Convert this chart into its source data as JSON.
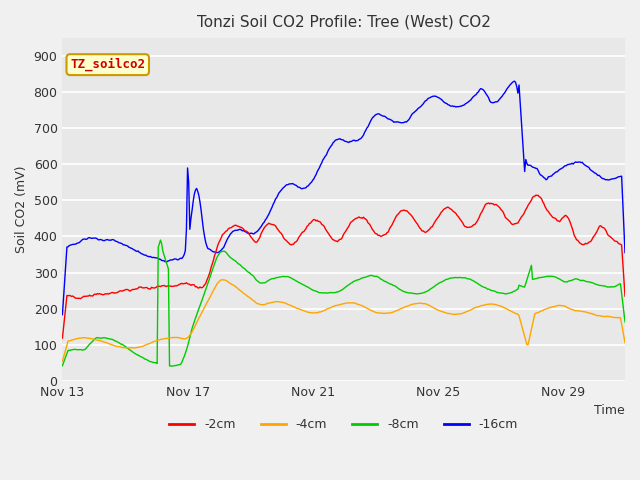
{
  "title": "Tonzi Soil CO2 Profile: Tree (West) CO2",
  "xlabel": "Time",
  "ylabel": "Soil CO2 (mV)",
  "label_tag": "TZ_soilco2",
  "ylim": [
    0,
    950
  ],
  "yticks": [
    0,
    100,
    200,
    300,
    400,
    500,
    600,
    700,
    800,
    900
  ],
  "colors": {
    "-2cm": "#ff0000",
    "-4cm": "#ffa500",
    "-8cm": "#00cc00",
    "-16cm": "#0000ff"
  },
  "legend_labels": [
    "-2cm",
    "-4cm",
    "-8cm",
    "-16cm"
  ],
  "background_color": "#f0f0f0",
  "plot_bg": "#e8e8e8",
  "grid_color": "#ffffff",
  "title_color": "#333333",
  "tag_bg": "#ffffcc",
  "tag_border": "#cc9900",
  "tag_text_color": "#cc0000",
  "xtick_labels": [
    "Nov 13",
    "Nov 17",
    "Nov 21",
    "Nov 25",
    "Nov 29"
  ]
}
